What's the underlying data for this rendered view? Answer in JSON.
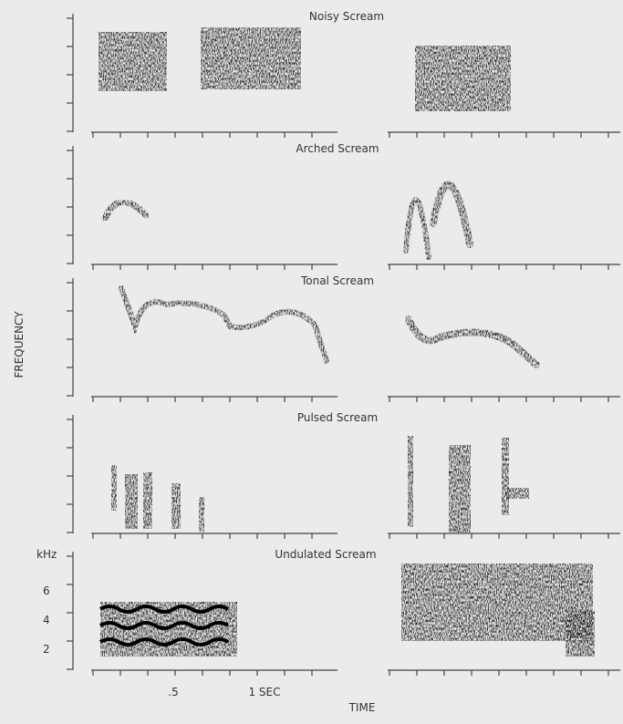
{
  "figure": {
    "panels": [
      {
        "title": "Noisy Scream"
      },
      {
        "title": "Arched Scream"
      },
      {
        "title": "Tonal Scream"
      },
      {
        "title": "Pulsed Scream"
      },
      {
        "title": "Undulated Scream"
      }
    ],
    "y_axis_label": "FREQUENCY",
    "x_axis_label": "TIME",
    "y_unit": "kHz",
    "y_tick_labels": [
      "6",
      "4",
      "2"
    ],
    "x_tick_labels": [
      ".5",
      "1 SEC"
    ]
  }
}
